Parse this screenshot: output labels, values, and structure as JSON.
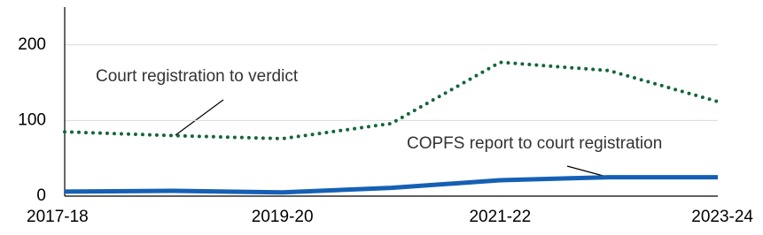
{
  "chart_data": {
    "type": "line",
    "categories": [
      "2017-18",
      null,
      "2019-20",
      null,
      "2021-22",
      null,
      "2023-24"
    ],
    "series": [
      {
        "name": "Court registration to verdict",
        "color": "#13663a",
        "dash": "dotted",
        "values": [
          85,
          80,
          76,
          96,
          177,
          166,
          125
        ]
      },
      {
        "name": "COPFS report to court registration",
        "color": "#1560b5",
        "dash": "solid",
        "values": [
          6,
          7,
          5,
          11,
          21,
          25,
          25
        ]
      }
    ],
    "ylim": [
      0,
      250
    ],
    "yticks": [
      0,
      100,
      200
    ],
    "grid": true
  }
}
